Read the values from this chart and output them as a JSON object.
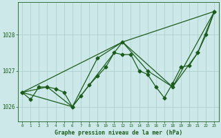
{
  "title": "Graphe pression niveau de la mer (hPa)",
  "background_color": "#cce8e8",
  "grid_color": "#aacccc",
  "line_color": "#1a5c1a",
  "text_color": "#1a5c1a",
  "xlim": [
    -0.5,
    23.5
  ],
  "ylim": [
    1025.6,
    1028.9
  ],
  "yticks": [
    1026,
    1027,
    1028
  ],
  "xtick_labels": [
    "0",
    "1",
    "2",
    "3",
    "4",
    "5",
    "6",
    "7",
    "8",
    "9",
    "10",
    "11",
    "12",
    "13",
    "14",
    "15",
    "16",
    "17",
    "18",
    "19",
    "20",
    "21",
    "22",
    "23"
  ],
  "series": [
    {
      "x": [
        0,
        1,
        2,
        3,
        4,
        5,
        6,
        7,
        8,
        9,
        10,
        11,
        12,
        13,
        14,
        15,
        16,
        17,
        18,
        19,
        20,
        21,
        22,
        23
      ],
      "y": [
        1026.4,
        1026.2,
        1026.55,
        1026.55,
        1026.5,
        1026.4,
        1026.0,
        1026.3,
        1026.6,
        1026.85,
        1027.1,
        1027.5,
        1027.45,
        1027.45,
        1027.0,
        1026.9,
        1026.55,
        1026.25,
        1026.65,
        1027.1,
        1027.15,
        1027.5,
        1028.0,
        1028.65
      ],
      "marker": "D",
      "markersize": 2.5,
      "linewidth": 0.9
    },
    {
      "x": [
        0,
        3,
        6,
        9,
        12,
        15,
        18,
        21,
        23
      ],
      "y": [
        1026.4,
        1026.55,
        1026.0,
        1027.35,
        1027.8,
        1027.0,
        1026.55,
        1027.5,
        1028.65
      ],
      "marker": "D",
      "markersize": 2.5,
      "linewidth": 0.9
    },
    {
      "x": [
        0,
        6,
        12,
        18,
        23
      ],
      "y": [
        1026.4,
        1026.0,
        1027.8,
        1026.55,
        1028.65
      ],
      "marker": null,
      "markersize": 0,
      "linewidth": 0.9
    },
    {
      "x": [
        0,
        12,
        23
      ],
      "y": [
        1026.4,
        1027.8,
        1028.65
      ],
      "marker": null,
      "markersize": 0,
      "linewidth": 0.9
    }
  ]
}
